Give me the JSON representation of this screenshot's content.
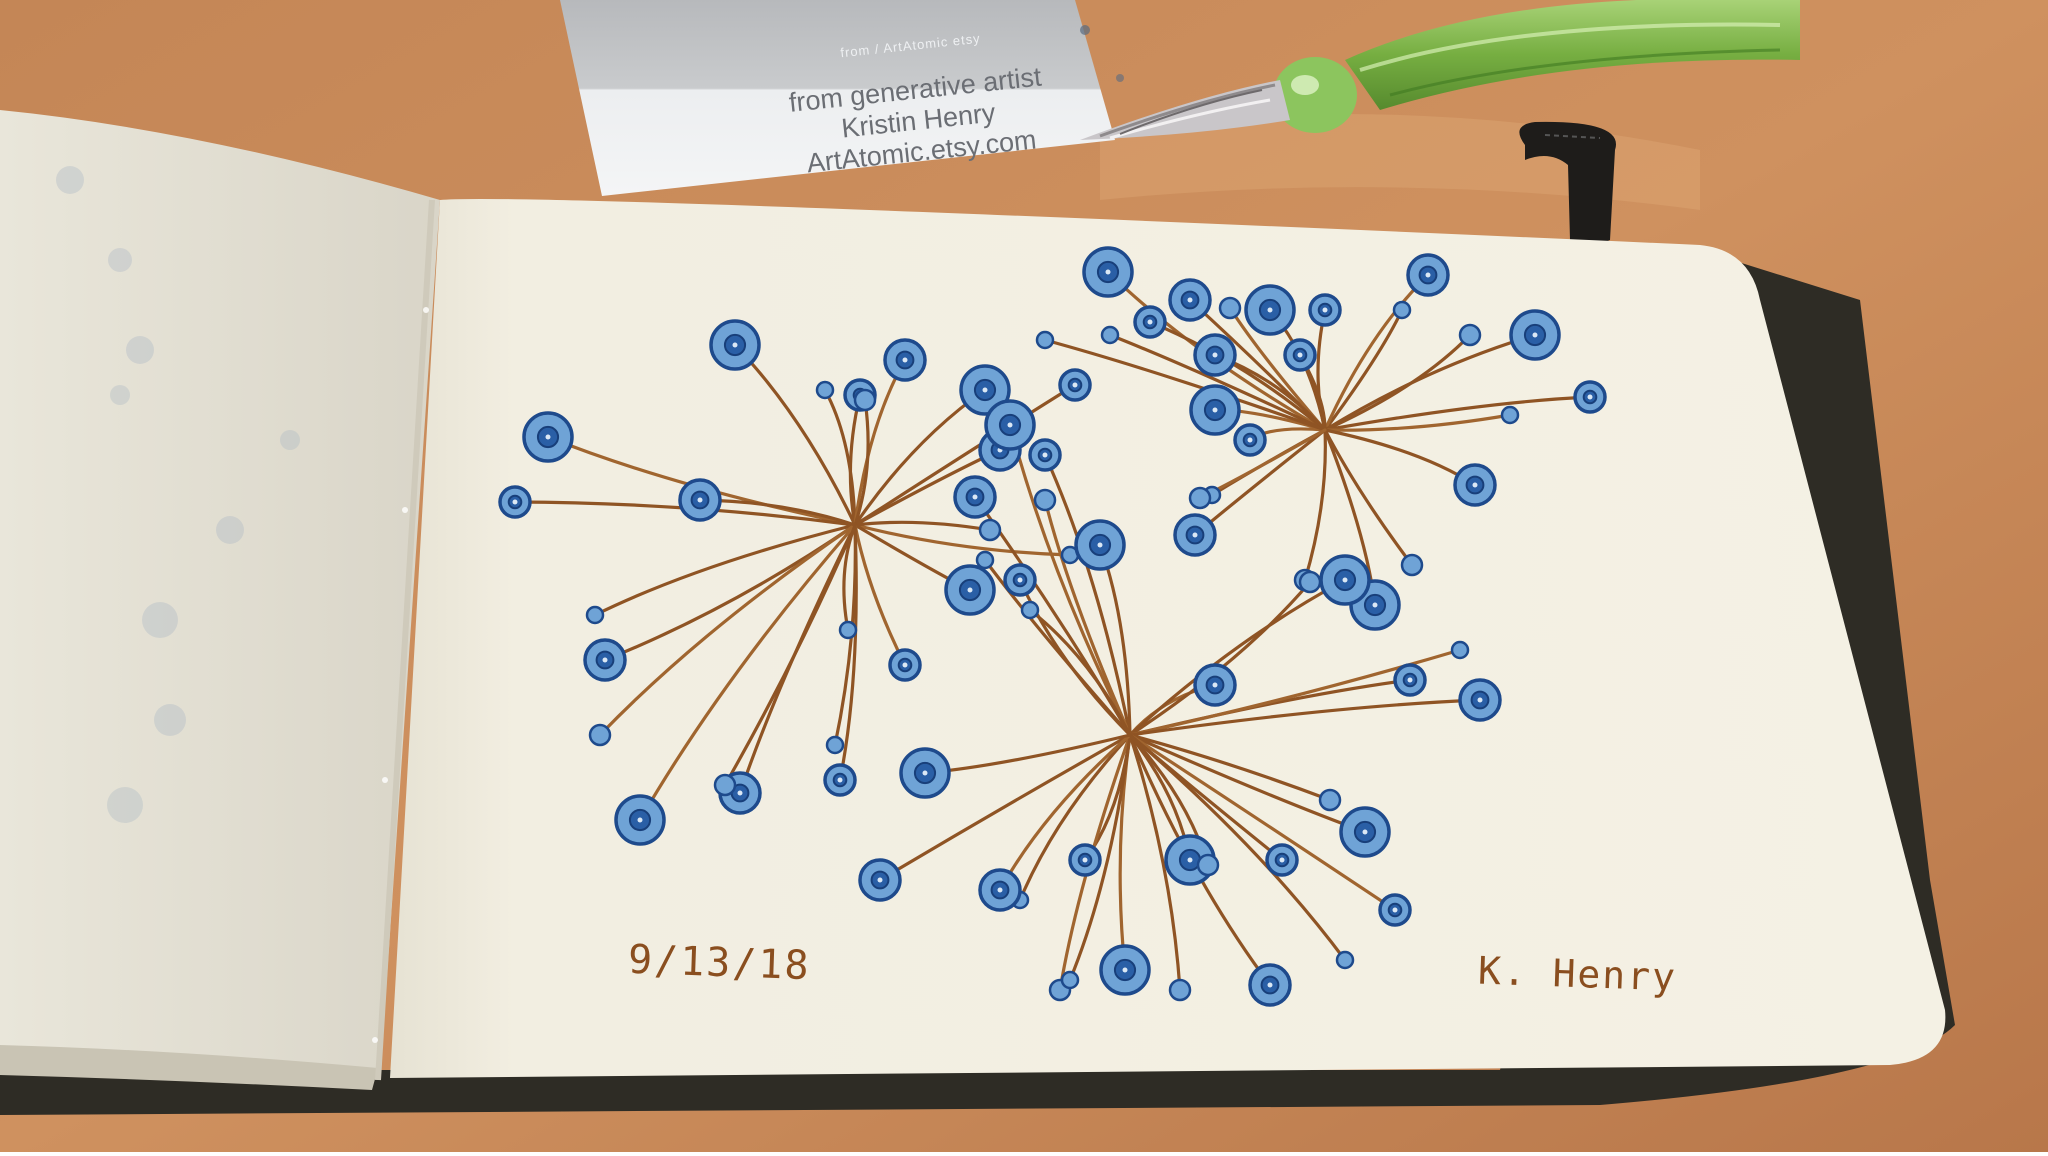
{
  "card": {
    "tiny_line": "from / ArtAtomic etsy",
    "line1": "from generative artist",
    "line2": "Kristin Henry",
    "line3": "ArtAtomic.etsy.com"
  },
  "sketch": {
    "date": "9/13/18",
    "signature": "K. Henry"
  },
  "colors": {
    "table": "#c98a5a",
    "paper": "#f2eee0",
    "ink_brown": "#8f5424",
    "ink_blue": "#2f6fb3",
    "ink_blue_dark": "#1e4a8c",
    "glass_pen": "#7bbf4a"
  }
}
